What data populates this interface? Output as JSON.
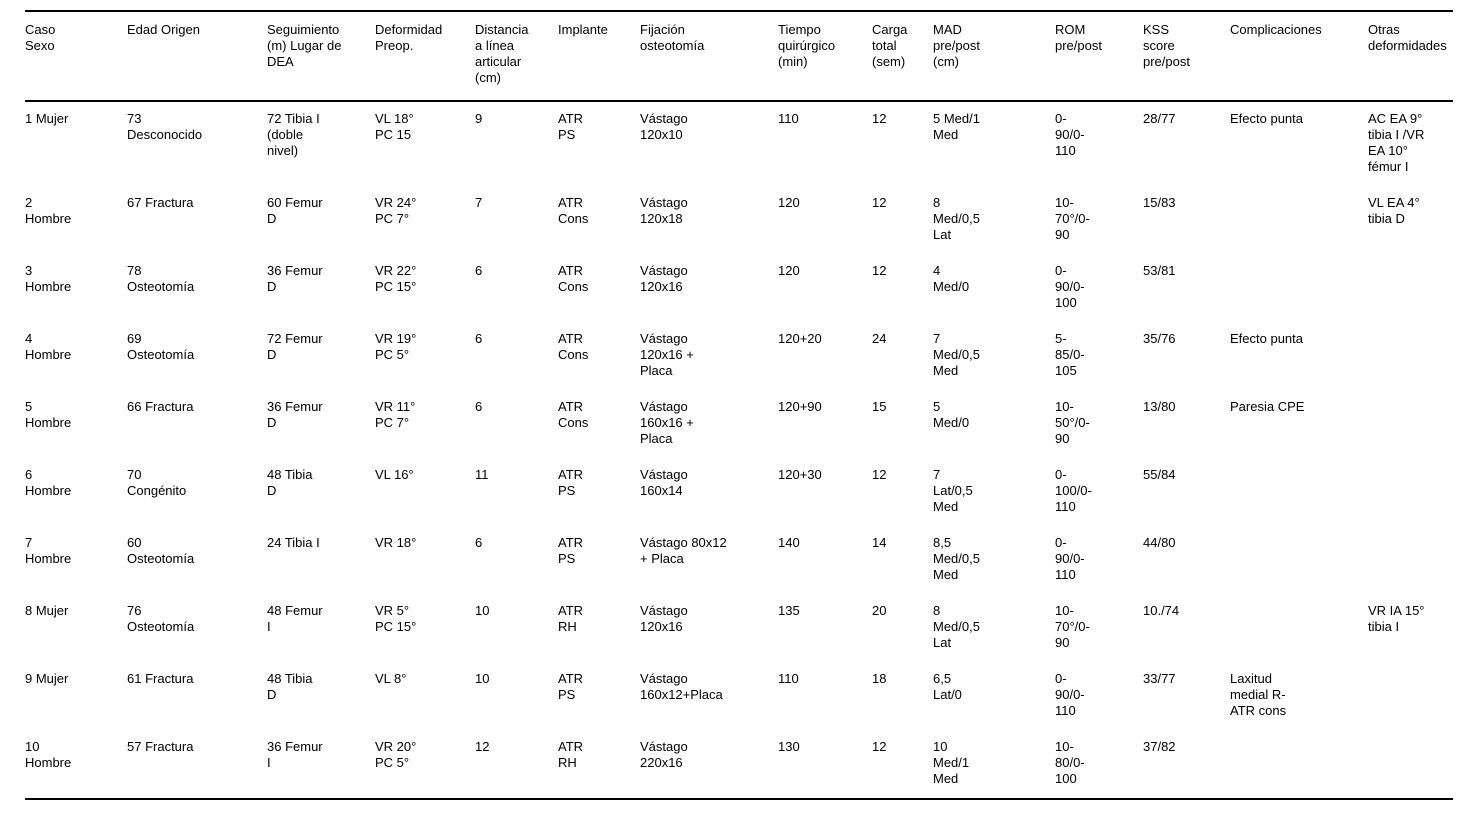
{
  "page": {
    "background_color": "#ffffff",
    "text_color": "#000000",
    "rule_color": "#000000"
  },
  "table": {
    "columns": [
      "Caso\nSexo",
      "Edad Origen",
      "Seguimiento\n(m) Lugar de\nDEA",
      "Deformidad\nPreop.",
      "Distancia\na línea\narticular\n(cm)",
      "Implante",
      "Fijación\nosteotomía",
      "Tiempo\nquirúrgico\n(min)",
      "Carga\ntotal\n(sem)",
      "MAD\npre/post\n(cm)",
      "ROM\npre/post",
      "KSS\nscore\npre/post",
      "Complicaciones",
      "Otras\ndeformidades"
    ],
    "rows": [
      [
        "1 Mujer",
        "73\nDesconocido",
        "72 Tibia I\n(doble\nnivel)",
        "VL 18°\nPC 15",
        "9",
        "ATR\nPS",
        "Vástago\n120x10",
        "110",
        "12",
        "5 Med/1\nMed",
        "0-\n90/0-\n110",
        "28/77",
        "Efecto punta",
        "AC EA 9°\ntibia I /VR\nEA 10°\nfémur I"
      ],
      [
        "2\nHombre",
        "67 Fractura",
        "60 Femur\nD",
        "VR 24°\nPC 7°",
        "7",
        "ATR\nCons",
        "Vástago\n120x18",
        "120",
        "12",
        "8\nMed/0,5\nLat",
        "10-\n70°/0-\n90",
        "15/83",
        "",
        "VL EA 4°\ntibia D"
      ],
      [
        "3\nHombre",
        "78\nOsteotomía",
        "36 Femur\nD",
        "VR 22°\nPC 15°",
        "6",
        "ATR\nCons",
        "Vástago\n120x16",
        "120",
        "12",
        "4\nMed/0",
        "0-\n90/0-\n100",
        "53/81",
        "",
        ""
      ],
      [
        "4\nHombre",
        "69\nOsteotomía",
        "72 Femur\nD",
        "VR 19°\nPC 5°",
        "6",
        "ATR\nCons",
        "Vástago\n120x16 +\nPlaca",
        "120+20",
        "24",
        "7\nMed/0,5\nMed",
        "5-\n85/0-\n105",
        "35/76",
        "Efecto punta",
        ""
      ],
      [
        "5\nHombre",
        "66 Fractura",
        "36 Femur\nD",
        "VR 11°\nPC 7°",
        "6",
        "ATR\nCons",
        "Vástago\n160x16 +\nPlaca",
        "120+90",
        "15",
        "5\nMed/0",
        "10-\n50°/0-\n90",
        "13/80",
        "Paresia CPE",
        ""
      ],
      [
        "6\nHombre",
        "70\nCongénito",
        "48 Tibia\nD",
        "VL 16°",
        "11",
        "ATR\nPS",
        "Vástago\n160x14",
        "120+30",
        "12",
        "7\nLat/0,5\nMed",
        "0-\n100/0-\n110",
        "55/84",
        "",
        ""
      ],
      [
        "7\nHombre",
        "60\nOsteotomía",
        "24 Tibia I",
        "VR 18°",
        "6",
        "ATR\nPS",
        "Vástago 80x12\n+ Placa",
        "140",
        "14",
        "8,5\nMed/0,5\nMed",
        "0-\n90/0-\n110",
        "44/80",
        "",
        ""
      ],
      [
        "8 Mujer",
        "76\nOsteotomía",
        "48 Femur\nI",
        "VR 5°\nPC 15°",
        "10",
        "ATR\nRH",
        "Vástago\n120x16",
        "135",
        "20",
        "8\nMed/0,5\nLat",
        "10-\n70°/0-\n90",
        "10./74",
        "",
        "VR IA 15°\ntibia I"
      ],
      [
        "9 Mujer",
        "61 Fractura",
        "48 Tibia\nD",
        "VL 8°",
        "10",
        "ATR\nPS",
        "Vástago\n160x12+Placa",
        "110",
        "18",
        "6,5\nLat/0",
        "0-\n90/0-\n110",
        "33/77",
        "Laxitud\nmedial R-\nATR cons",
        ""
      ],
      [
        "10\nHombre",
        "57 Fractura",
        "36 Femur\nI",
        "VR 20°\nPC 5°",
        "12",
        "ATR\nRH",
        "Vástago\n220x16",
        "130",
        "12",
        "10\nMed/1\nMed",
        "10-\n80/0-\n100",
        "37/82",
        "",
        ""
      ]
    ]
  }
}
